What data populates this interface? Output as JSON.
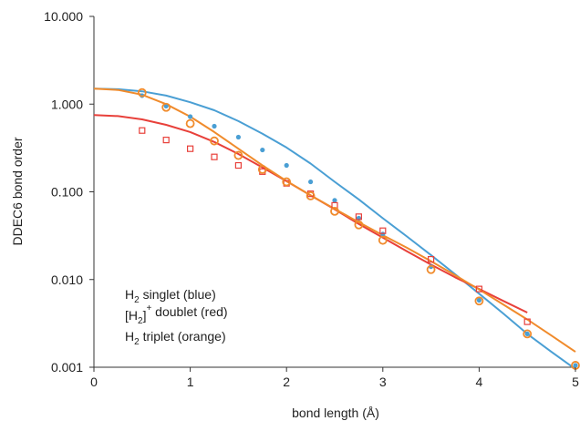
{
  "chart_data": {
    "type": "scatter",
    "xlabel": "bond length (Å)",
    "ylabel": "DDEC6 bond order",
    "xlim": [
      0,
      5
    ],
    "ylim": [
      0.001,
      10
    ],
    "yscale": "log",
    "x_ticks": [
      "0",
      "1",
      "2",
      "3",
      "4",
      "5"
    ],
    "y_ticks": [
      "0.001",
      "0.010",
      "0.100",
      "1.000",
      "10.000"
    ],
    "grid": false,
    "legend_position": "bottom-left",
    "legend": [
      {
        "main": "H",
        "sub": "2",
        "rest": " singlet (blue)"
      },
      {
        "pre": "[H",
        "sub": "2",
        "mid": "]",
        "sup": "+",
        "rest": " doublet (red)"
      },
      {
        "main": "H",
        "sub": "2",
        "rest": " triplet (orange)"
      }
    ],
    "series": [
      {
        "color": "#4a9fd4",
        "marker": "filled-dot",
        "points": [
          [
            0.5,
            1.25
          ],
          [
            0.75,
            0.95
          ],
          [
            1.0,
            0.72
          ],
          [
            1.25,
            0.56
          ],
          [
            1.5,
            0.42
          ],
          [
            1.75,
            0.3
          ],
          [
            2.0,
            0.2
          ],
          [
            2.25,
            0.13
          ],
          [
            2.5,
            0.08
          ],
          [
            2.75,
            0.05
          ],
          [
            3.0,
            0.033
          ],
          [
            3.5,
            0.014
          ],
          [
            4.0,
            0.0058
          ],
          [
            4.5,
            0.0024
          ],
          [
            5.0,
            0.00105
          ]
        ],
        "fit": [
          [
            0,
            1.5
          ],
          [
            0.25,
            1.48
          ],
          [
            0.5,
            1.4
          ],
          [
            0.75,
            1.25
          ],
          [
            1.0,
            1.05
          ],
          [
            1.25,
            0.85
          ],
          [
            1.5,
            0.64
          ],
          [
            1.75,
            0.46
          ],
          [
            2.0,
            0.32
          ],
          [
            2.25,
            0.21
          ],
          [
            2.5,
            0.13
          ],
          [
            2.75,
            0.082
          ],
          [
            3.0,
            0.05
          ],
          [
            3.25,
            0.031
          ],
          [
            3.5,
            0.019
          ],
          [
            3.75,
            0.0115
          ],
          [
            4.0,
            0.0069
          ],
          [
            4.25,
            0.0041
          ],
          [
            4.5,
            0.0024
          ],
          [
            4.75,
            0.0015
          ],
          [
            5.0,
            0.00095
          ]
        ]
      },
      {
        "color": "#e8403a",
        "marker": "open-square",
        "points": [
          [
            0.5,
            0.5
          ],
          [
            0.75,
            0.39
          ],
          [
            1.0,
            0.31
          ],
          [
            1.25,
            0.25
          ],
          [
            1.5,
            0.2
          ],
          [
            1.75,
            0.17
          ],
          [
            2.0,
            0.125
          ],
          [
            2.25,
            0.095
          ],
          [
            2.5,
            0.07
          ],
          [
            2.75,
            0.052
          ],
          [
            3.0,
            0.036
          ],
          [
            3.5,
            0.017
          ],
          [
            4.0,
            0.0078
          ],
          [
            4.5,
            0.0033
          ]
        ],
        "fit": [
          [
            0,
            0.75
          ],
          [
            0.25,
            0.73
          ],
          [
            0.5,
            0.67
          ],
          [
            0.75,
            0.58
          ],
          [
            1.0,
            0.48
          ],
          [
            1.25,
            0.37
          ],
          [
            1.5,
            0.27
          ],
          [
            1.75,
            0.19
          ],
          [
            2.0,
            0.132
          ],
          [
            2.25,
            0.091
          ],
          [
            2.5,
            0.063
          ],
          [
            2.75,
            0.043
          ],
          [
            3.0,
            0.03
          ],
          [
            3.25,
            0.021
          ],
          [
            3.5,
            0.0148
          ],
          [
            3.75,
            0.0106
          ],
          [
            4.0,
            0.0078
          ],
          [
            4.25,
            0.0057
          ],
          [
            4.5,
            0.0042
          ]
        ]
      },
      {
        "color": "#f08b2c",
        "marker": "open-circle",
        "points": [
          [
            0.5,
            1.35
          ],
          [
            0.75,
            0.92
          ],
          [
            1.0,
            0.6
          ],
          [
            1.25,
            0.38
          ],
          [
            1.5,
            0.26
          ],
          [
            1.75,
            0.18
          ],
          [
            2.0,
            0.13
          ],
          [
            2.25,
            0.09
          ],
          [
            2.5,
            0.06
          ],
          [
            2.75,
            0.042
          ],
          [
            3.0,
            0.028
          ],
          [
            3.5,
            0.013
          ],
          [
            4.0,
            0.0057
          ],
          [
            4.5,
            0.0024
          ],
          [
            5.0,
            0.00105
          ]
        ],
        "fit": [
          [
            0,
            1.5
          ],
          [
            0.25,
            1.45
          ],
          [
            0.5,
            1.28
          ],
          [
            0.75,
            1.0
          ],
          [
            1.0,
            0.72
          ],
          [
            1.25,
            0.48
          ],
          [
            1.5,
            0.31
          ],
          [
            1.75,
            0.2
          ],
          [
            2.0,
            0.133
          ],
          [
            2.25,
            0.091
          ],
          [
            2.5,
            0.064
          ],
          [
            2.75,
            0.045
          ],
          [
            3.0,
            0.032
          ],
          [
            3.25,
            0.023
          ],
          [
            3.5,
            0.0162
          ],
          [
            3.75,
            0.0112
          ],
          [
            4.0,
            0.0077
          ],
          [
            4.25,
            0.0052
          ],
          [
            4.5,
            0.0035
          ],
          [
            4.75,
            0.0023
          ],
          [
            5.0,
            0.0015
          ]
        ]
      }
    ]
  }
}
